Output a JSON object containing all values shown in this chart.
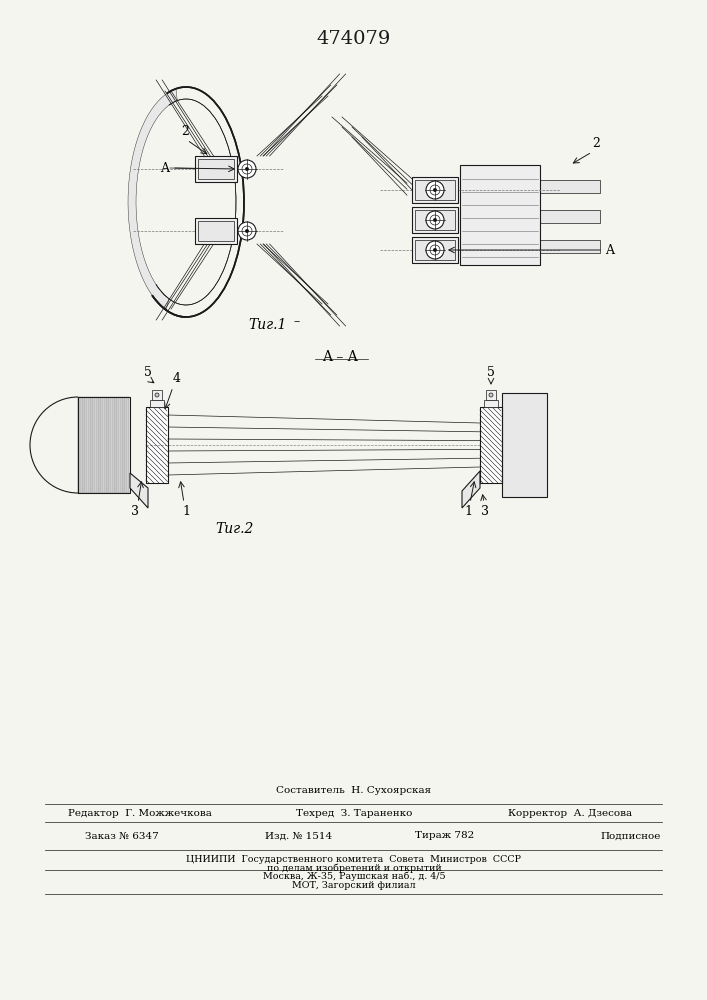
{
  "patent_number": "474079",
  "fig1_caption": "Τиг.1",
  "fig2_caption": "Τиг.2",
  "section_label": "A–A",
  "bg_color": "#f5f5f0",
  "line_color": "#1a1a1a",
  "lw_thin": 0.5,
  "lw_med": 0.8,
  "lw_thick": 1.2,
  "label_2": "2",
  "label_A": "A",
  "label_1": "1",
  "label_3": "3",
  "label_4": "4",
  "label_5": "5",
  "footer_composer": "Составитель  Н. Сухоярская",
  "footer_editor": "Редактор  Г. Можжечкова",
  "footer_techred": "Техред  З. Тараненко",
  "footer_corrector": "Корректор  А. Дзесова",
  "footer_order": "Заказ № 6347",
  "footer_izd": "Изд. № 1514",
  "footer_tirazh": "Тираж 782",
  "footer_podpis": "Подписное",
  "footer_org1": "ЦНИИПИ  Государственного комитета  Совета  Министров  СССР",
  "footer_org2": "по делам изобретений и открытий",
  "footer_addr": "Москва, Ж-35, Раушская наб., д. 4/5",
  "footer_mot": "МОТ, Загорский филиал"
}
